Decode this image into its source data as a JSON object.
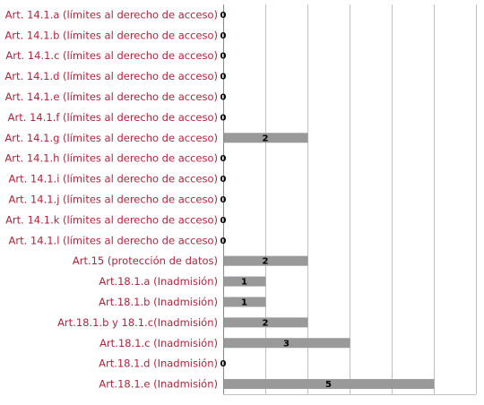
{
  "chart_data": {
    "type": "bar",
    "orientation": "horizontal",
    "categories": [
      "Art. 14.1.a  (límites al derecho de acceso)",
      "Art. 14.1.b (límites al derecho de acceso)",
      "Art. 14.1.c  (límites al derecho de acceso)",
      "Art. 14.1.d (límites al derecho de acceso)",
      "Art. 14.1.e (límites al derecho de acceso)",
      "Art. 14.1.f (límites al derecho de acceso)",
      "Art. 14.1.g (límites al derecho de acceso)",
      "Art. 14.1.h (límites al derecho de acceso)",
      "Art. 14.1.i (límites al derecho de acceso)",
      "Art. 14.1.j (límites al derecho de acceso)",
      "Art. 14.1.k (límites al derecho de acceso)",
      "Art. 14.1.l (límites al derecho de acceso)",
      "Art.15 (protección de datos)",
      "Art.18.1.a (Inadmisión)",
      "Art.18.1.b (Inadmisión)",
      "Art.18.1.b y 18.1.c(Inadmisión)",
      "Art.18.1.c (Inadmisión)",
      "Art.18.1.d (Inadmisión)",
      "Art.18.1.e (Inadmisión)"
    ],
    "values": [
      0,
      0,
      0,
      0,
      0,
      0,
      2,
      0,
      0,
      0,
      0,
      0,
      2,
      1,
      1,
      2,
      3,
      0,
      5
    ],
    "data_labels": [
      "0",
      "0",
      "0",
      "0",
      "0",
      "0",
      "2",
      "0",
      "0",
      "0",
      "0",
      "0",
      "2",
      "1",
      "1",
      "2",
      "3",
      "0",
      "5"
    ],
    "title": "",
    "xlabel": "",
    "ylabel": "",
    "xlim": [
      0,
      6
    ],
    "grid": true,
    "legend": "none"
  },
  "colors": {
    "bar": "#999999",
    "category_label": "#b3223b",
    "grid": "#c0c0c0",
    "axis": "#888888"
  }
}
